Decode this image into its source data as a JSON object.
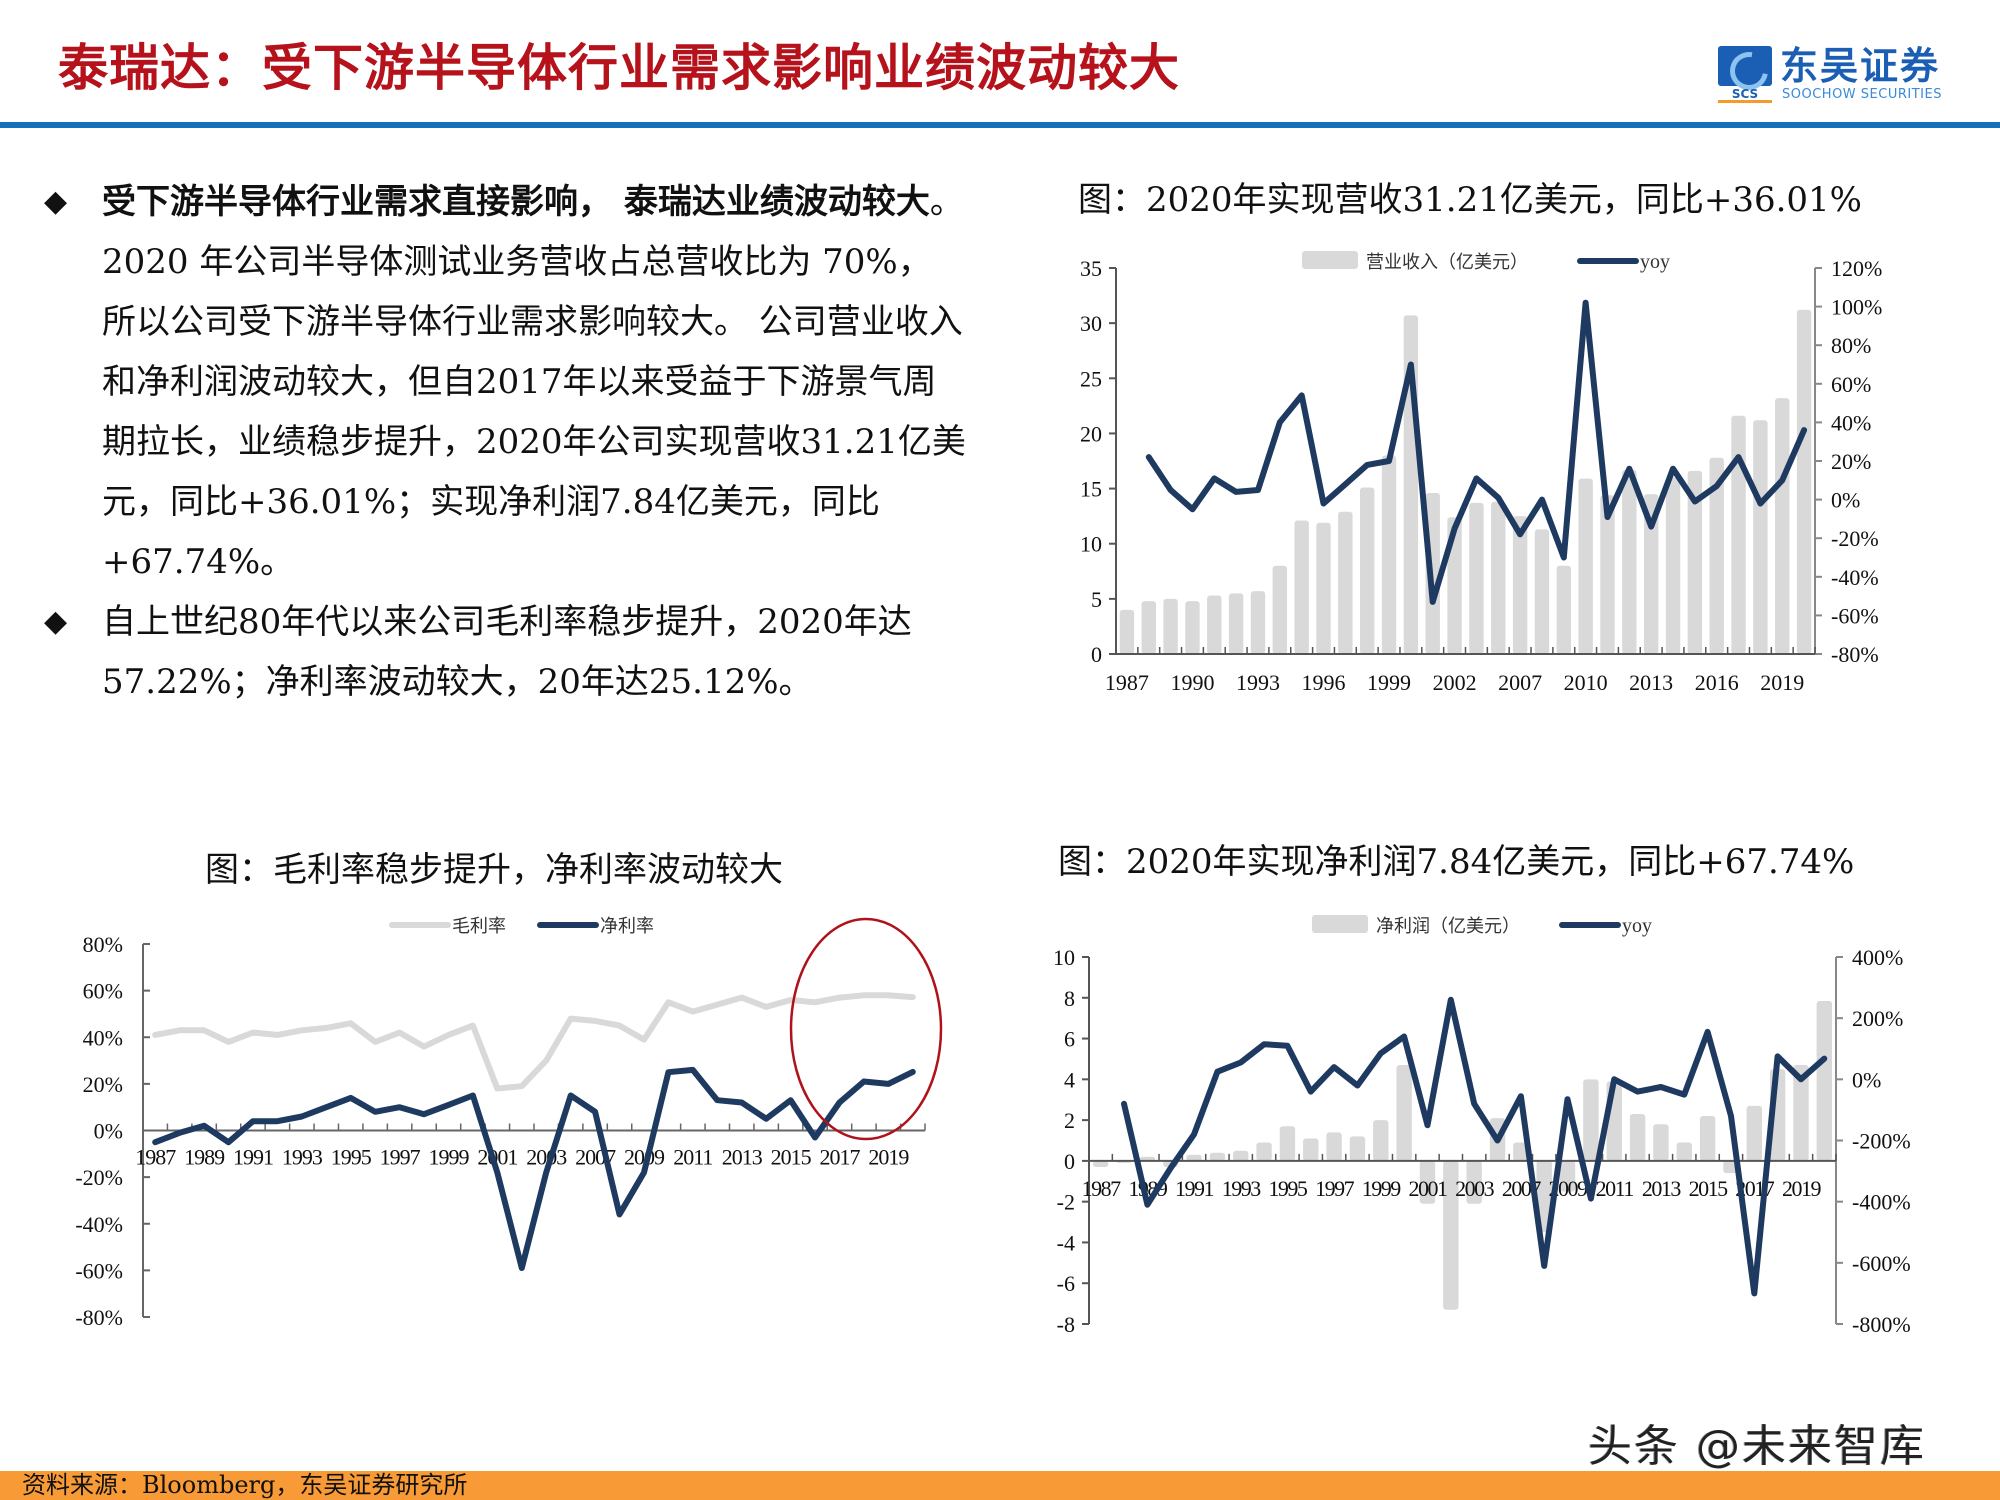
{
  "header": {
    "title": "泰瑞达：受下游半导体行业需求影响业绩波动较大",
    "logo_cn": "东吴证券",
    "logo_en": "SOOCHOW SECURITIES",
    "logo_abbr": "SCS"
  },
  "bullets": [
    {
      "icon": "diamond-bullet",
      "bold": "受下游半导体行业需求直接影响， 泰瑞达业绩波动较大",
      "text": "。 2020 年公司半导体测试业务营收占总营收比为 70%， 所以公司受下游半导体行业需求影响较大。 公司营业收入和净利润波动较大，但自2017年以来受益于下游景气周期拉长，业绩稳步提升，2020年公司实现营收31.21亿美元，同比+36.01%；实现净利润7.84亿美元，同比+67.74%。"
    },
    {
      "icon": "diamond-bullet",
      "bold": "",
      "text": "自上世纪80年代以来公司毛利率稳步提升，2020年达57.22%；净利率波动较大，20年达25.12%。"
    }
  ],
  "charts": {
    "revenue": {
      "title": "图：2020年实现营收31.21亿美元，同比+36.01%"
    },
    "margin": {
      "title": "图：毛利率稳步提升，净利率波动较大"
    },
    "profit": {
      "title": "图：2020年实现净利润7.84亿美元，同比+67.74%"
    }
  },
  "footer": {
    "source": "资料来源：Bloomberg，东吴证券研究所"
  },
  "watermark": "头条 @未来智库",
  "colors": {
    "title_red": "#b5121b",
    "brand_blue": "#1470b8",
    "footer_orange": "#f89a35",
    "bar_gray": "#d9d9d9",
    "line_navy": "#1f3a60",
    "line_lightgray": "#d9d9d9",
    "highlight_red": "#b0121b"
  },
  "chart_data": [
    {
      "id": "revenue",
      "type": "bar+line",
      "title": "图：2020年实现营收31.21亿美元，同比+36.01%",
      "categories": [
        "1987",
        "1988",
        "1989",
        "1990",
        "1991",
        "1992",
        "1993",
        "1994",
        "1995",
        "1996",
        "1997",
        "1998",
        "1999",
        "2000",
        "2001",
        "2002",
        "2003",
        "2004",
        "2007",
        "2008",
        "2009",
        "2010",
        "2011",
        "2012",
        "2013",
        "2014",
        "2015",
        "2016",
        "2017",
        "2018",
        "2019",
        "2020"
      ],
      "xtick_labels": [
        "1987",
        "1990",
        "1993",
        "1996",
        "1999",
        "2002",
        "2007",
        "2010",
        "2013",
        "2016",
        "2019"
      ],
      "series": [
        {
          "name": "营业收入（亿美元）",
          "type": "bar",
          "axis": "left",
          "values": [
            4.0,
            4.8,
            5.0,
            4.8,
            5.3,
            5.5,
            5.7,
            8.0,
            12.1,
            11.9,
            12.9,
            15.1,
            18.0,
            30.7,
            14.6,
            12.4,
            13.7,
            13.8,
            12.5,
            11.3,
            8.0,
            15.9,
            14.4,
            16.7,
            14.5,
            16.0,
            16.6,
            17.8,
            21.6,
            21.2,
            23.2,
            31.21
          ]
        },
        {
          "name": "yoy",
          "type": "line",
          "axis": "right",
          "values": [
            null,
            22,
            5,
            -5,
            11,
            4,
            5,
            40,
            54,
            -2,
            8,
            18,
            20,
            70,
            -53,
            -15,
            11,
            1,
            -18,
            0,
            -30,
            102,
            -9,
            16,
            -14,
            16,
            -1,
            7,
            22,
            -2,
            10,
            36.01
          ]
        }
      ],
      "ylim_left": [
        0,
        35
      ],
      "yticks_left": [
        0,
        5,
        10,
        15,
        20,
        25,
        30,
        35
      ],
      "ylim_right": [
        -80,
        120
      ],
      "yticks_right": [
        "-80%",
        "-60%",
        "-40%",
        "-20%",
        "0%",
        "20%",
        "40%",
        "60%",
        "80%",
        "100%",
        "120%"
      ],
      "legend_position": "top"
    },
    {
      "id": "margin",
      "type": "line",
      "title": "图：毛利率稳步提升，净利率波动较大",
      "categories": [
        "1987",
        "1988",
        "1989",
        "1990",
        "1991",
        "1992",
        "1993",
        "1994",
        "1995",
        "1996",
        "1997",
        "1998",
        "1999",
        "2000",
        "2001",
        "2002",
        "2003",
        "2004",
        "2007",
        "2008",
        "2009",
        "2010",
        "2011",
        "2012",
        "2013",
        "2014",
        "2015",
        "2016",
        "2017",
        "2018",
        "2019",
        "2020"
      ],
      "xtick_labels": [
        "1987",
        "1989",
        "1991",
        "1993",
        "1995",
        "1997",
        "1999",
        "2001",
        "2003",
        "2007",
        "2009",
        "2011",
        "2013",
        "2015",
        "2017",
        "2019"
      ],
      "series": [
        {
          "name": "毛利率",
          "values": [
            41,
            43,
            43,
            38,
            42,
            41,
            43,
            44,
            46,
            38,
            42,
            36,
            41,
            45,
            18,
            19,
            30,
            48,
            47,
            45,
            39,
            55,
            51,
            54,
            57,
            53,
            56,
            55,
            57,
            58,
            58,
            57.22
          ]
        },
        {
          "name": "净利率",
          "values": [
            -5,
            -1,
            2,
            -5,
            4,
            4,
            6,
            10,
            14,
            8,
            10,
            7,
            11,
            15,
            -18,
            -59,
            -18,
            15,
            8,
            -36,
            -18,
            25,
            26,
            13,
            12,
            5,
            13,
            -3,
            12,
            21,
            20,
            25.12
          ]
        }
      ],
      "ylim": [
        -80,
        80
      ],
      "yticks": [
        "-80%",
        "-60%",
        "-40%",
        "-20%",
        "0%",
        "20%",
        "40%",
        "60%",
        "80%"
      ],
      "annotation": "red ellipse highlighting 2016-2020",
      "legend_position": "top"
    },
    {
      "id": "profit",
      "type": "bar+line",
      "title": "图：2020年实现净利润7.84亿美元，同比+67.74%",
      "categories": [
        "1987",
        "1988",
        "1989",
        "1990",
        "1991",
        "1992",
        "1993",
        "1994",
        "1995",
        "1996",
        "1997",
        "1998",
        "1999",
        "2000",
        "2001",
        "2002",
        "2003",
        "2004",
        "2007",
        "2008",
        "2009",
        "2010",
        "2011",
        "2012",
        "2013",
        "2014",
        "2015",
        "2016",
        "2017",
        "2018",
        "2019",
        "2020"
      ],
      "xtick_labels": [
        "1987",
        "1989",
        "1991",
        "1993",
        "1995",
        "1997",
        "1999",
        "2001",
        "2003",
        "2007",
        "2009",
        "2011",
        "2013",
        "2015",
        "2017",
        "2019"
      ],
      "series": [
        {
          "name": "净利润（亿美元）",
          "type": "bar",
          "axis": "left",
          "values": [
            -0.3,
            -0.1,
            0.2,
            -0.3,
            0.3,
            0.4,
            0.5,
            0.9,
            1.7,
            1.1,
            1.4,
            1.2,
            2.0,
            4.7,
            -2.1,
            -7.3,
            -2.1,
            2.1,
            0.9,
            -3.5,
            -1.5,
            4.0,
            3.9,
            2.3,
            1.8,
            0.9,
            2.2,
            -0.6,
            2.7,
            4.5,
            4.7,
            7.84
          ]
        },
        {
          "name": "yoy",
          "type": "line",
          "axis": "right",
          "values": [
            null,
            -80,
            -410,
            -290,
            -180,
            25,
            55,
            115,
            110,
            -40,
            40,
            -20,
            85,
            140,
            -150,
            260,
            -80,
            -200,
            -55,
            -610,
            -65,
            -390,
            0,
            -40,
            -25,
            -50,
            155,
            -120,
            -700,
            75,
            0,
            67.74
          ]
        }
      ],
      "ylim_left": [
        -8,
        10
      ],
      "yticks_left": [
        -8,
        -6,
        -4,
        -2,
        0,
        2,
        4,
        6,
        8,
        10
      ],
      "ylim_right": [
        -800,
        400
      ],
      "yticks_right": [
        "-800%",
        "-600%",
        "-400%",
        "-200%",
        "0%",
        "200%",
        "400%"
      ],
      "legend_position": "top"
    }
  ]
}
